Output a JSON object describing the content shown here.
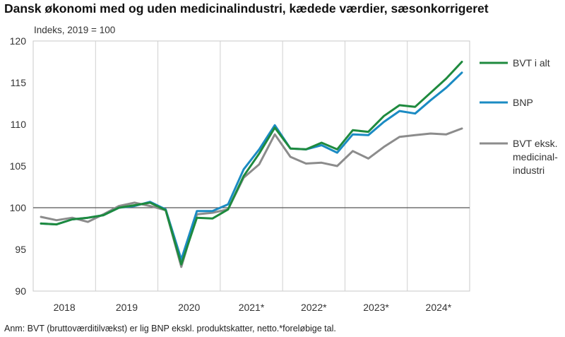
{
  "title": "Dansk økonomi med og uden medicinalindustri, kædede værdier, sæsonkorrigeret",
  "footnote": "Anm: BVT (bruttoværditilvækst) er lig BNP ekskl. produktskatter, netto.*foreløbige tal.",
  "chart_data": {
    "type": "line",
    "ylabel": "Indeks, 2019  = 100",
    "ylim": [
      90,
      120
    ],
    "yticks": [
      90,
      95,
      100,
      105,
      110,
      115,
      120
    ],
    "reference_line": 100,
    "grid": "vertical",
    "legend": "right",
    "categories": [
      "2018",
      "2019",
      "2020",
      "2021*",
      "2022*",
      "2023*",
      "2024*"
    ],
    "x": [
      "2018K1",
      "2018K2",
      "2018K3",
      "2018K4",
      "2019K1",
      "2019K2",
      "2019K3",
      "2019K4",
      "2020K1",
      "2020K2",
      "2020K3",
      "2020K4",
      "2021K1",
      "2021K2",
      "2021K3",
      "2021K4",
      "2022K1",
      "2022K2",
      "2022K3",
      "2022K4",
      "2023K1",
      "2023K2",
      "2023K3",
      "2023K4",
      "2024K1",
      "2024K2",
      "2024K3",
      "2024K4"
    ],
    "series": [
      {
        "name": "BVT i alt",
        "color": "#1e8a3e",
        "values": [
          98.1,
          98.0,
          98.6,
          98.8,
          99.1,
          100.0,
          100.3,
          100.6,
          99.7,
          93.2,
          98.8,
          98.7,
          99.8,
          103.8,
          106.5,
          109.6,
          107.1,
          107.0,
          107.8,
          107.0,
          109.3,
          109.1,
          111.0,
          112.3,
          112.1,
          113.8,
          115.5,
          117.5
        ]
      },
      {
        "name": "BNP",
        "color": "#1b8bc3",
        "values": [
          98.1,
          98.0,
          98.6,
          98.8,
          99.1,
          100.0,
          100.2,
          100.7,
          99.8,
          93.8,
          99.6,
          99.6,
          100.4,
          104.6,
          107.0,
          109.9,
          107.1,
          107.0,
          107.5,
          106.6,
          108.8,
          108.7,
          110.3,
          111.6,
          111.3,
          112.9,
          114.4,
          116.2
        ]
      },
      {
        "name": "BVT eksk.|medicinal-|industri",
        "color": "#8c8c8c",
        "values": [
          98.9,
          98.5,
          98.8,
          98.3,
          99.2,
          100.2,
          100.6,
          100.2,
          99.7,
          92.9,
          99.2,
          99.4,
          99.8,
          103.6,
          105.2,
          108.8,
          106.1,
          105.3,
          105.4,
          105.0,
          106.8,
          105.9,
          107.3,
          108.5,
          108.7,
          108.9,
          108.8,
          109.5
        ]
      }
    ]
  }
}
